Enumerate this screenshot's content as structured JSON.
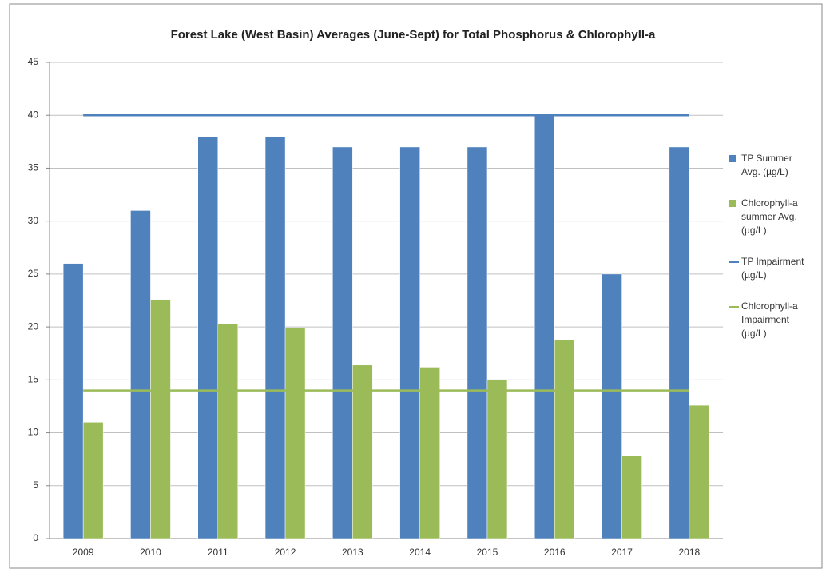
{
  "chart_data": {
    "type": "bar",
    "title": "Forest Lake (West Basin) Averages (June-Sept) for Total Phosphorus & Chlorophyll-a",
    "categories": [
      "2009",
      "2010",
      "2011",
      "2012",
      "2013",
      "2014",
      "2015",
      "2016",
      "2017",
      "2018"
    ],
    "series": [
      {
        "name": "TP Summer Avg. (µg/L)",
        "type": "bar",
        "color": "#4f81bd",
        "values": [
          26,
          31,
          38,
          38,
          37,
          37,
          37,
          40,
          25,
          37
        ]
      },
      {
        "name": "Chlorophyll-a summer Avg. (µg/L)",
        "type": "bar",
        "color": "#9bbb59",
        "values": [
          11,
          22.6,
          20.3,
          19.9,
          16.4,
          16.2,
          15,
          18.8,
          7.8,
          12.6
        ]
      },
      {
        "name": "TP Impairment (µg/L)",
        "type": "line",
        "color": "#4f81bd",
        "values": [
          40,
          40,
          40,
          40,
          40,
          40,
          40,
          40,
          40,
          40
        ]
      },
      {
        "name": "Chlorophyll-a Impairment (µg/L)",
        "type": "line",
        "color": "#9bbb59",
        "values": [
          14,
          14,
          14,
          14,
          14,
          14,
          14,
          14,
          14,
          14
        ]
      }
    ],
    "ylim": [
      0,
      45
    ],
    "yticks": [
      0,
      5,
      10,
      15,
      20,
      25,
      30,
      35,
      40,
      45
    ],
    "grid": true,
    "legend": "right"
  }
}
